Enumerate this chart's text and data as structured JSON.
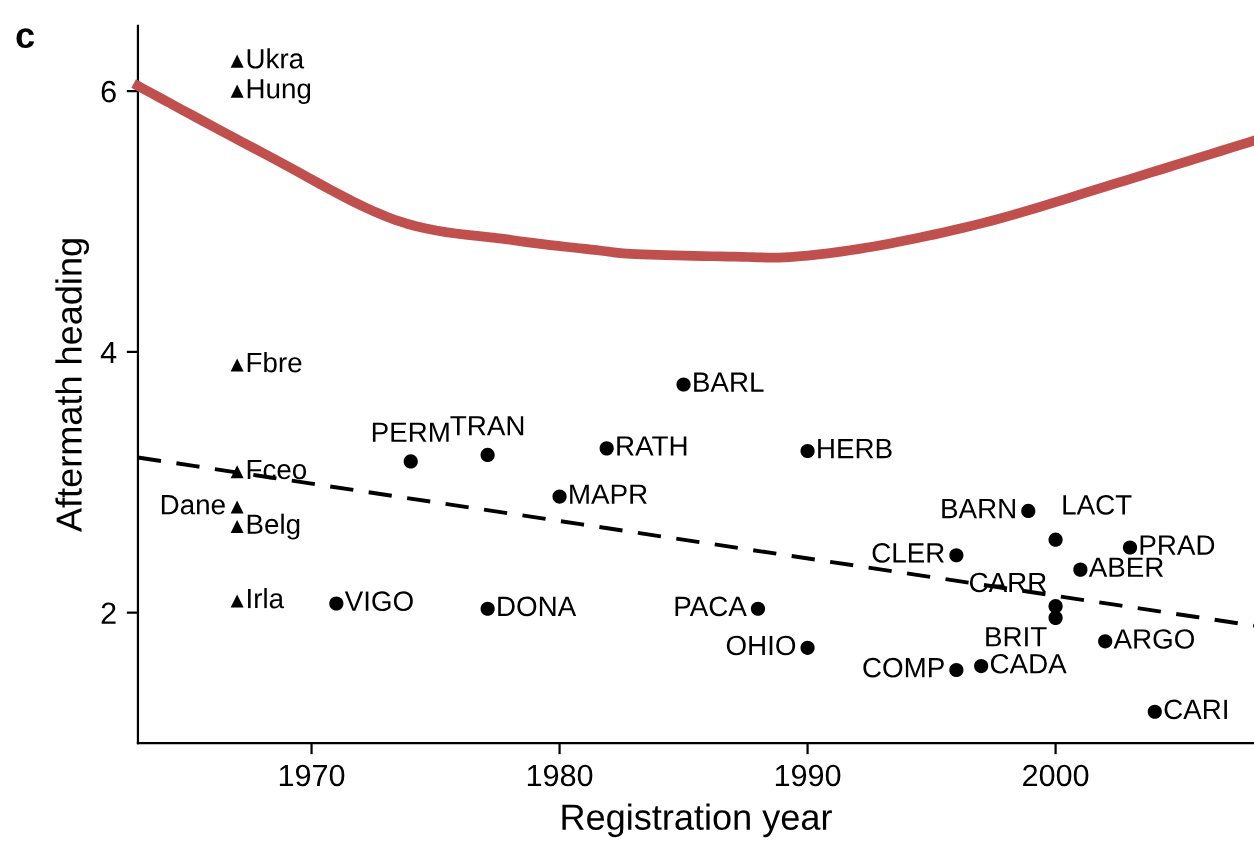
{
  "chart_data": {
    "type": "scatter",
    "xlabel": "Registration year",
    "ylabel": "Aftermath heading",
    "annotations": [
      "c"
    ],
    "xlim": [
      1963,
      2008
    ],
    "ylim": [
      1.0,
      6.5
    ],
    "xticks": [
      1970,
      1980,
      1990,
      2000
    ],
    "yticks": [
      2,
      4,
      6
    ],
    "grid": false,
    "legend": false,
    "series": [
      {
        "marker": "triangle",
        "color": "#000000",
        "x": [
          1967.0,
          1967.0,
          1967.0,
          1967.0,
          1967.0,
          1967.0,
          1967.0
        ],
        "values": [
          6.23,
          6.0,
          3.9,
          3.08,
          2.81,
          2.66,
          2.09
        ],
        "value_labels": [
          "Ukra",
          "Hung",
          "Fbre",
          "Fceo",
          "Dane",
          "Belg",
          "Irla"
        ]
      },
      {
        "marker": "circle",
        "color": "#000000",
        "x": [
          1971.0,
          1977.1,
          1974.0,
          1977.1,
          1980.0,
          1981.9,
          1985.0,
          1990.0,
          1988.0,
          1990.0,
          1998.9,
          2000.0,
          1996.0,
          2003.0,
          2001.0,
          2000.0,
          2000.0,
          2002.0,
          1996.0,
          1997.0,
          2004.0
        ],
        "values": [
          2.07,
          2.03,
          3.16,
          3.21,
          2.89,
          3.26,
          3.75,
          3.24,
          2.03,
          1.73,
          2.78,
          2.56,
          2.44,
          2.5,
          2.33,
          2.05,
          1.96,
          1.78,
          1.56,
          1.59,
          1.24
        ],
        "value_labels": [
          "VIGO",
          "DONA",
          "PERM",
          "TRAN",
          "MAPR",
          "RATH",
          "BARL",
          "HERB",
          "PACA",
          "OHIO",
          "BARN",
          "LACT",
          "CLER",
          "PRAD",
          "ABER",
          "CARR",
          "BRIT",
          "ARGO",
          "COMP",
          "CADA",
          "CARI"
        ]
      },
      {
        "type": "line",
        "line_style": "dashed",
        "color": "#000000",
        "x": [
          1963,
          2008
        ],
        "values": [
          3.19,
          1.9
        ]
      },
      {
        "type": "line",
        "line_style": "solid",
        "color": "#c0504d",
        "x": [
          1963,
          1968.1,
          1973.4,
          1978.0,
          1981.5,
          1983.1,
          1987.1,
          1989.5,
          1993.0,
          1997.5,
          2002.9,
          2008
        ],
        "values": [
          6.04,
          5.52,
          5.01,
          4.86,
          4.78,
          4.75,
          4.73,
          4.73,
          4.82,
          5.01,
          5.32,
          5.62
        ]
      }
    ]
  }
}
